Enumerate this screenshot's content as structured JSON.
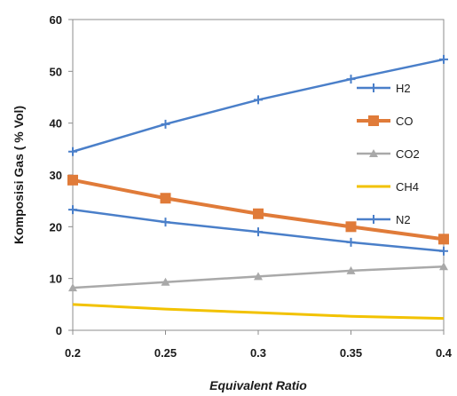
{
  "chart_data": {
    "type": "line",
    "xlabel": "Equivalent Ratio",
    "ylabel": "Komposisi Gas ( % Vol)",
    "x": [
      0.2,
      0.25,
      0.3,
      0.35,
      0.4
    ],
    "x_tick_labels": [
      "0.2",
      "0.25",
      "0.3",
      "0.35",
      "0.4"
    ],
    "xlim": [
      0.2,
      0.4
    ],
    "ylim": [
      0,
      60
    ],
    "y_ticks": [
      0,
      10,
      20,
      30,
      40,
      50,
      60
    ],
    "grid": false,
    "legend_position": "right",
    "series": [
      {
        "name": "H2",
        "color": "#4a7fc9",
        "marker": "plus",
        "values": [
          23.3,
          20.9,
          19.0,
          17.0,
          15.3
        ]
      },
      {
        "name": "CO",
        "color": "#e07b39",
        "marker": "square",
        "values": [
          29.0,
          25.5,
          22.5,
          20.0,
          17.6
        ]
      },
      {
        "name": "CO2",
        "color": "#a9a9a9",
        "marker": "triangle",
        "values": [
          8.2,
          9.3,
          10.4,
          11.5,
          12.3
        ]
      },
      {
        "name": "CH4",
        "color": "#f2c200",
        "marker": "line",
        "values": [
          5.0,
          4.1,
          3.4,
          2.7,
          2.3
        ]
      },
      {
        "name": "N2",
        "color": "#4a7fc9",
        "marker": "plus",
        "values": [
          34.5,
          39.8,
          44.5,
          48.5,
          52.3
        ]
      }
    ]
  }
}
